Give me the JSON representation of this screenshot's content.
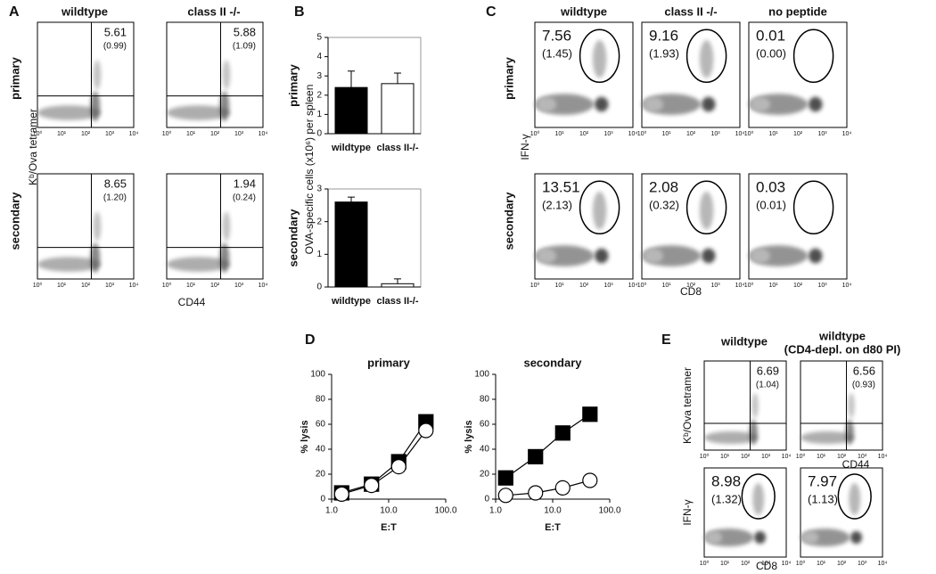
{
  "panel_labels": [
    "A",
    "B",
    "C",
    "D",
    "E"
  ],
  "flow_ticks": [
    "10⁰",
    "10¹",
    "10²",
    "10³",
    "10⁴"
  ],
  "panel_a": {
    "columns": [
      "wildtype",
      "class II -/-"
    ],
    "rows": [
      "primary",
      "secondary"
    ],
    "y_label": "Kᵇ/Ova tetramer",
    "x_label": "CD44",
    "percentages": [
      [
        "5.61",
        "5.88"
      ],
      [
        "8.65",
        "1.94"
      ]
    ],
    "counts": [
      [
        "(0.99)",
        "(1.09)"
      ],
      [
        "(1.20)",
        "(0.24)"
      ]
    ]
  },
  "panel_c": {
    "columns": [
      "wildtype",
      "class II -/-",
      "no peptide"
    ],
    "rows": [
      "primary",
      "secondary"
    ],
    "y_label": "IFN-γ",
    "x_label": "CD8",
    "percentages": [
      [
        "7.56",
        "9.16",
        "0.01"
      ],
      [
        "13.51",
        "2.08",
        "0.03"
      ]
    ],
    "counts": [
      [
        "(1.45)",
        "(1.93)",
        "(0.00)"
      ],
      [
        "(2.13)",
        "(0.32)",
        "(0.01)"
      ]
    ]
  },
  "panel_e": {
    "columns": [
      "wildtype",
      "wildtype"
    ],
    "column_note": "(CD4-depl. on d80 PI)",
    "y_labels": [
      "Kᵇ/Ova tetramer",
      "IFN-γ"
    ],
    "x_labels": [
      "CD44",
      "CD8"
    ],
    "percentages": [
      [
        "6.69",
        "6.56"
      ],
      [
        "8.98",
        "7.97"
      ]
    ],
    "counts": [
      [
        "(1.04)",
        "(0.93)"
      ],
      [
        "(1.32)",
        "(1.13)"
      ]
    ]
  },
  "chart_data": [
    {
      "type": "bar",
      "title": "primary",
      "y_label": "OVA-specific cells (x10⁶) per spleen",
      "categories": [
        "wildtype",
        "class II-/-"
      ],
      "values": [
        2.4,
        2.6
      ],
      "errors": [
        0.85,
        0.55
      ],
      "colors": [
        "#000000",
        "#ffffff"
      ],
      "ylim": [
        0,
        5
      ],
      "yticks": [
        0,
        1,
        2,
        3,
        4,
        5
      ]
    },
    {
      "type": "bar",
      "title": "secondary",
      "categories": [
        "wildtype",
        "class II-/-"
      ],
      "values": [
        2.6,
        0.1
      ],
      "errors": [
        0.15,
        0.15
      ],
      "colors": [
        "#000000",
        "#ffffff"
      ],
      "ylim": [
        0,
        3
      ],
      "yticks": [
        0,
        1,
        2,
        3
      ]
    },
    {
      "type": "line",
      "title": "primary",
      "x_label": "E:T",
      "y_label": "% lysis",
      "xscale": "log",
      "x": [
        1.5,
        5,
        15,
        45
      ],
      "xlim": [
        1,
        100
      ],
      "xticks": [
        {
          "value": 1,
          "label": "1.0"
        },
        {
          "value": 10,
          "label": "10.0"
        },
        {
          "value": 100,
          "label": "100.0"
        }
      ],
      "ylim": [
        0,
        100
      ],
      "yticks": [
        0,
        20,
        40,
        60,
        80,
        100
      ],
      "series": [
        {
          "marker": "square",
          "color": "#000000",
          "values": [
            5,
            12,
            30,
            62
          ]
        },
        {
          "marker": "circle",
          "color": "#ffffff",
          "values": [
            4,
            11,
            26,
            55
          ]
        }
      ]
    },
    {
      "type": "line",
      "title": "secondary",
      "x_label": "E:T",
      "y_label": "% lysis",
      "xscale": "log",
      "x": [
        1.5,
        5,
        15,
        45
      ],
      "xlim": [
        1,
        100
      ],
      "xticks": [
        {
          "value": 1,
          "label": "1.0"
        },
        {
          "value": 10,
          "label": "10.0"
        },
        {
          "value": 100,
          "label": "100.0"
        }
      ],
      "ylim": [
        0,
        100
      ],
      "yticks": [
        0,
        20,
        40,
        60,
        80,
        100
      ],
      "series": [
        {
          "marker": "square",
          "color": "#000000",
          "values": [
            17,
            34,
            53,
            68
          ]
        },
        {
          "marker": "circle",
          "color": "#ffffff",
          "values": [
            3,
            5,
            9,
            15
          ]
        }
      ]
    }
  ]
}
